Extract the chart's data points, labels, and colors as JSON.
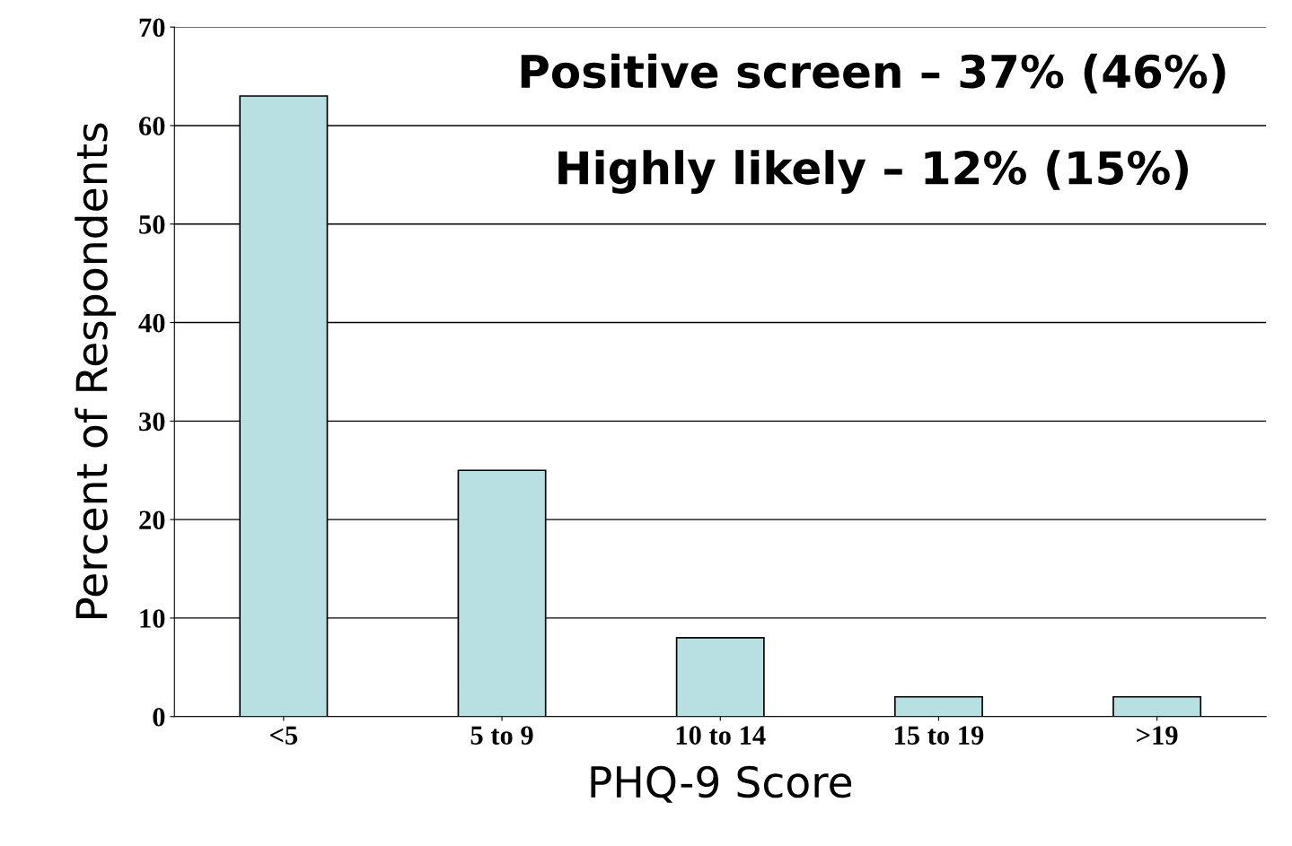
{
  "chart_data": {
    "type": "bar",
    "xlabel": "PHQ-9 Score",
    "ylabel": "Percent of Respondents",
    "categories": [
      "<5",
      "5 to 9",
      "10 to 14",
      "15 to 19",
      ">19"
    ],
    "values": [
      63,
      25,
      8,
      2,
      2
    ],
    "color": "#b8dfe2",
    "ylim": [
      0,
      70
    ],
    "yticks": [
      0,
      10,
      20,
      30,
      40,
      50,
      60,
      70
    ],
    "grid": "y",
    "annotations": [
      "Positive screen – 37% (46%)",
      "Highly likely – 12% (15%)"
    ]
  }
}
